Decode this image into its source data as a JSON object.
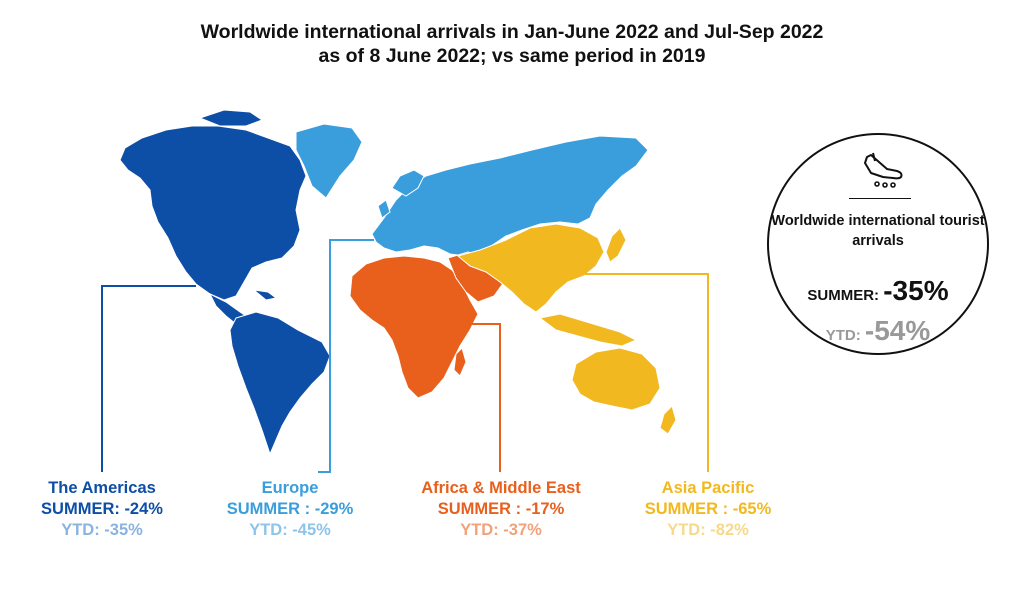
{
  "title": {
    "line1": "Worldwide international arrivals in Jan-June 2022 and Jul-Sep 2022",
    "line2": "as of 8 June 2022; vs same period in 2019"
  },
  "colors": {
    "americas": "#0d4ea6",
    "americas_ytd": "#8ab3e0",
    "europe": "#3a9edd",
    "europe_ytd": "#8dc4ea",
    "africa": "#e8601c",
    "africa_ytd": "#f0a27a",
    "asia": "#f2b81f",
    "asia_ytd": "#f6d98a"
  },
  "regions": [
    {
      "name": "The Americas",
      "summer": "SUMMER: -24%",
      "ytd": "YTD: -35%"
    },
    {
      "name": "Europe",
      "summer": "SUMMER : -29%",
      "ytd": "YTD: -45%"
    },
    {
      "name": "Africa & Middle East",
      "summer": "SUMMER : -17%",
      "ytd": "YTD: -37%"
    },
    {
      "name": "Asia Pacific",
      "summer": "SUMMER : -65%",
      "ytd": "YTD: -82%"
    }
  ],
  "worldwide": {
    "icon": "airplane-landing-icon",
    "label": "Worldwide international tourist arrivals",
    "summer_label": "SUMMER: ",
    "summer_value": "-35%",
    "ytd_label": "YTD: ",
    "ytd_value": "-54%"
  }
}
